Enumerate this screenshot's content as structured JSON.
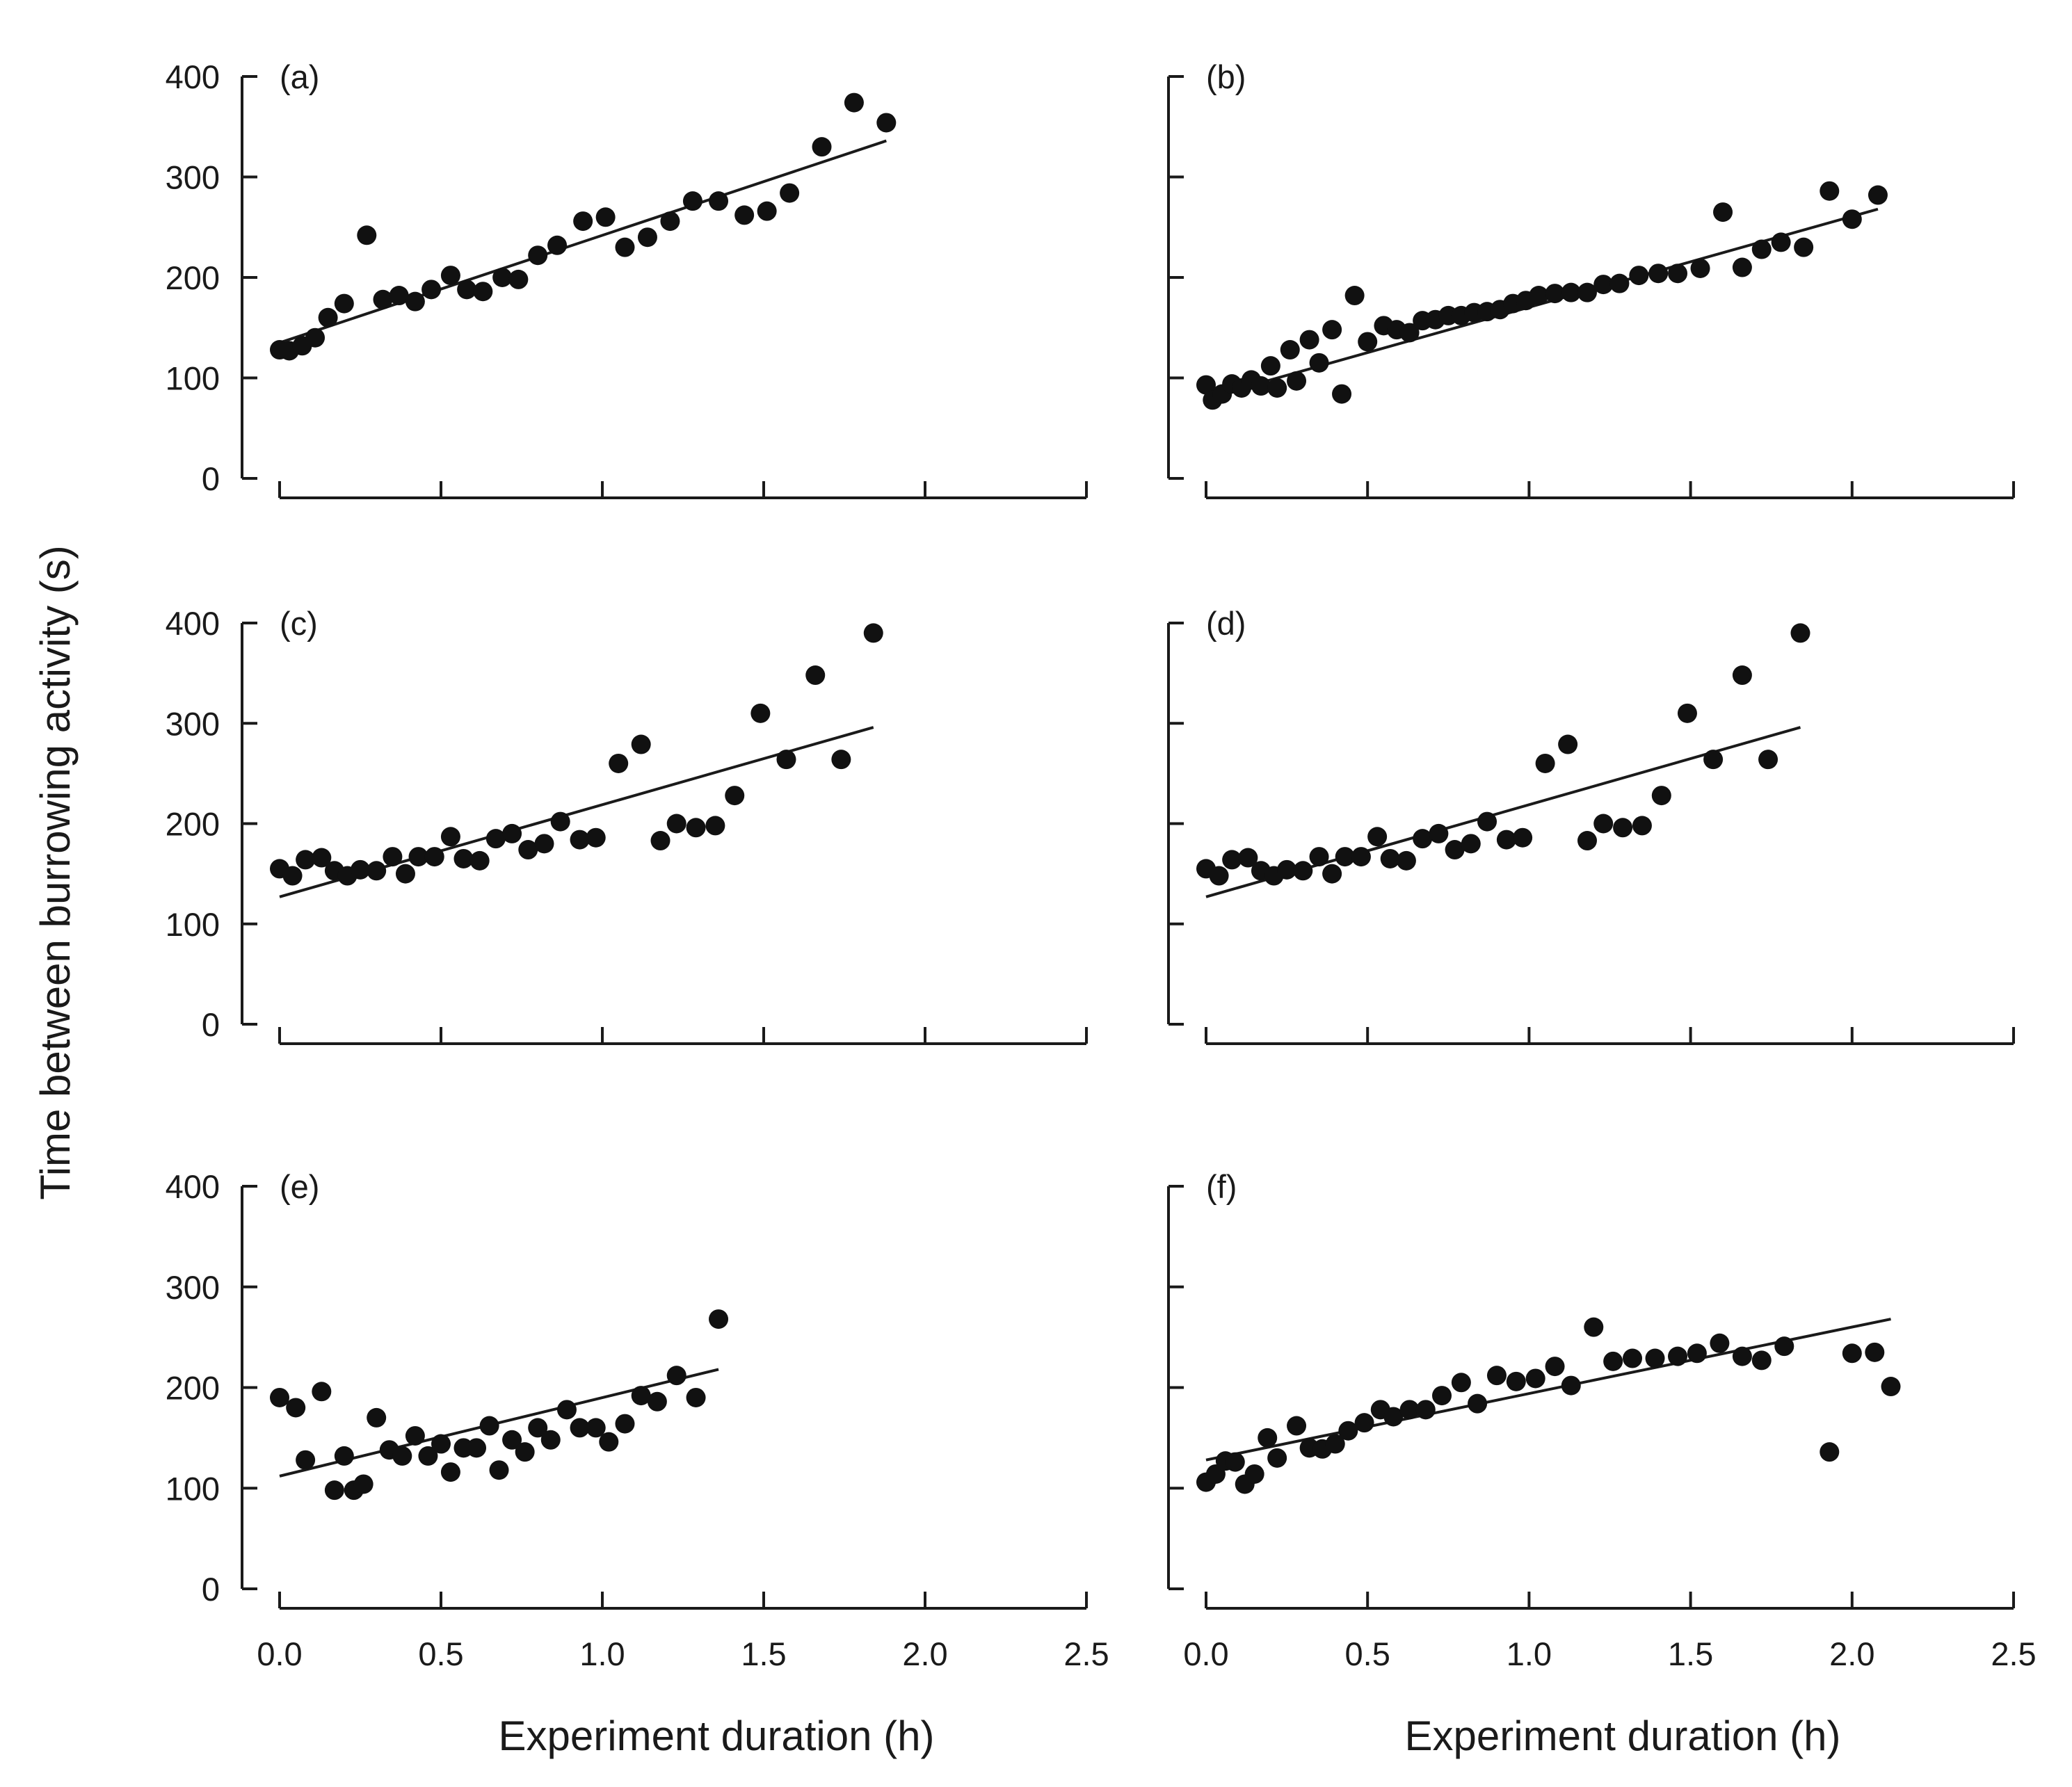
{
  "figure": {
    "ylabel": "Time between burrowing activity (s)",
    "xlabel": "Experiment duration (h)"
  },
  "chart_data": [
    {
      "type": "scatter",
      "panel": "(a)",
      "xlim": [
        0,
        2.5
      ],
      "ylim": [
        0,
        400
      ],
      "xticks": [
        "0.0",
        "0.5",
        "1.0",
        "1.5",
        "2.0",
        "2.5"
      ],
      "yticks": [
        "0",
        "100",
        "200",
        "300",
        "400"
      ],
      "x": [
        0.0,
        0.03,
        0.07,
        0.11,
        0.15,
        0.2,
        0.27,
        0.32,
        0.37,
        0.42,
        0.47,
        0.53,
        0.58,
        0.63,
        0.69,
        0.74,
        0.8,
        0.86,
        0.94,
        1.01,
        1.07,
        1.14,
        1.21,
        1.28,
        1.36,
        1.44,
        1.51,
        1.58,
        1.68,
        1.78,
        1.88
      ],
      "y": [
        128,
        127,
        132,
        140,
        160,
        174,
        242,
        178,
        182,
        176,
        188,
        202,
        188,
        186,
        200,
        198,
        222,
        232,
        256,
        260,
        230,
        240,
        256,
        276,
        276,
        262,
        266,
        284,
        330,
        374,
        354
      ],
      "fit": {
        "x": [
          0.0,
          1.88
        ],
        "y": [
          135,
          336
        ]
      }
    },
    {
      "type": "scatter",
      "panel": "(b)",
      "xlim": [
        0,
        2.5
      ],
      "ylim": [
        0,
        400
      ],
      "xticks": [
        "0.0",
        "0.5",
        "1.0",
        "1.5",
        "2.0",
        "2.5"
      ],
      "yticks": [
        "0",
        "100",
        "200",
        "300",
        "400"
      ],
      "x": [
        0.0,
        0.02,
        0.05,
        0.08,
        0.11,
        0.14,
        0.17,
        0.2,
        0.22,
        0.26,
        0.28,
        0.32,
        0.35,
        0.39,
        0.42,
        0.46,
        0.5,
        0.55,
        0.59,
        0.63,
        0.67,
        0.71,
        0.75,
        0.79,
        0.83,
        0.87,
        0.91,
        0.95,
        0.99,
        1.03,
        1.08,
        1.13,
        1.18,
        1.23,
        1.28,
        1.34,
        1.4,
        1.46,
        1.53,
        1.6,
        1.66,
        1.72,
        1.78,
        1.85,
        1.93,
        2.0,
        2.08
      ],
      "y": [
        93,
        78,
        84,
        94,
        90,
        98,
        92,
        112,
        90,
        128,
        97,
        138,
        115,
        148,
        84,
        182,
        136,
        152,
        148,
        145,
        157,
        158,
        162,
        162,
        165,
        166,
        168,
        174,
        177,
        182,
        184,
        185,
        185,
        193,
        194,
        202,
        204,
        204,
        209,
        265,
        210,
        228,
        235,
        230,
        286,
        258,
        282
      ],
      "fit": {
        "x": [
          0.0,
          2.08
        ],
        "y": [
          80,
          268
        ]
      }
    },
    {
      "type": "scatter",
      "panel": "(c)",
      "xlim": [
        0,
        2.5
      ],
      "ylim": [
        0,
        400
      ],
      "xticks": [
        "0.0",
        "0.5",
        "1.0",
        "1.5",
        "2.0",
        "2.5"
      ],
      "yticks": [
        "0",
        "100",
        "200",
        "300",
        "400"
      ],
      "x": [
        0.0,
        0.04,
        0.08,
        0.13,
        0.17,
        0.21,
        0.25,
        0.3,
        0.35,
        0.39,
        0.43,
        0.48,
        0.53,
        0.57,
        0.62,
        0.67,
        0.72,
        0.77,
        0.82,
        0.87,
        0.93,
        0.98,
        1.05,
        1.12,
        1.18,
        1.23,
        1.29,
        1.35,
        1.41,
        1.49,
        1.57,
        1.66,
        1.74,
        1.84
      ],
      "y": [
        155,
        148,
        164,
        166,
        153,
        148,
        154,
        153,
        167,
        150,
        167,
        167,
        187,
        165,
        163,
        185,
        190,
        174,
        180,
        202,
        184,
        186,
        260,
        279,
        183,
        200,
        196,
        198,
        228,
        310,
        264,
        348,
        264,
        390
      ],
      "fit": {
        "x": [
          0.0,
          1.84
        ],
        "y": [
          127,
          296
        ]
      }
    },
    {
      "type": "scatter",
      "panel": "(d)",
      "xlim": [
        0,
        2.5
      ],
      "ylim": [
        0,
        400
      ],
      "xticks": [
        "0.0",
        "0.5",
        "1.0",
        "1.5",
        "2.0",
        "2.5"
      ],
      "yticks": [
        "0",
        "100",
        "200",
        "300",
        "400"
      ],
      "x": [
        0.0,
        0.04,
        0.08,
        0.13,
        0.17,
        0.21,
        0.25,
        0.3,
        0.35,
        0.39,
        0.43,
        0.48,
        0.53,
        0.57,
        0.62,
        0.67,
        0.72,
        0.77,
        0.82,
        0.87,
        0.93,
        0.98,
        1.05,
        1.12,
        1.18,
        1.23,
        1.29,
        1.35,
        1.41,
        1.49,
        1.57,
        1.66,
        1.74,
        1.84
      ],
      "y": [
        155,
        148,
        164,
        166,
        153,
        148,
        154,
        153,
        167,
        150,
        167,
        167,
        187,
        165,
        163,
        185,
        190,
        174,
        180,
        202,
        184,
        186,
        260,
        279,
        183,
        200,
        196,
        198,
        228,
        310,
        264,
        348,
        264,
        390
      ],
      "fit": {
        "x": [
          0.0,
          1.84
        ],
        "y": [
          127,
          296
        ]
      }
    },
    {
      "type": "scatter",
      "panel": "(e)",
      "xlim": [
        0,
        2.5
      ],
      "ylim": [
        0,
        400
      ],
      "xticks": [
        "0.0",
        "0.5",
        "1.0",
        "1.5",
        "2.0",
        "2.5"
      ],
      "yticks": [
        "0",
        "100",
        "200",
        "300",
        "400"
      ],
      "x": [
        0.0,
        0.05,
        0.08,
        0.13,
        0.17,
        0.2,
        0.23,
        0.26,
        0.3,
        0.34,
        0.38,
        0.42,
        0.46,
        0.5,
        0.53,
        0.57,
        0.61,
        0.65,
        0.68,
        0.72,
        0.76,
        0.8,
        0.84,
        0.89,
        0.93,
        0.98,
        1.02,
        1.07,
        1.12,
        1.17,
        1.23,
        1.29,
        1.36
      ],
      "y": [
        190,
        180,
        128,
        196,
        98,
        132,
        98,
        104,
        170,
        138,
        132,
        152,
        132,
        144,
        116,
        140,
        140,
        162,
        118,
        148,
        136,
        160,
        148,
        178,
        160,
        160,
        146,
        164,
        192,
        186,
        212,
        190,
        268
      ],
      "fit": {
        "x": [
          0.0,
          1.36
        ],
        "y": [
          112,
          218
        ]
      }
    },
    {
      "type": "scatter",
      "panel": "(f)",
      "xlim": [
        0,
        2.5
      ],
      "ylim": [
        0,
        400
      ],
      "xticks": [
        "0.0",
        "0.5",
        "1.0",
        "1.5",
        "2.0",
        "2.5"
      ],
      "yticks": [
        "0",
        "100",
        "200",
        "300",
        "400"
      ],
      "x": [
        0.0,
        0.03,
        0.06,
        0.09,
        0.12,
        0.15,
        0.19,
        0.22,
        0.28,
        0.32,
        0.36,
        0.4,
        0.44,
        0.49,
        0.54,
        0.58,
        0.63,
        0.68,
        0.73,
        0.79,
        0.84,
        0.9,
        0.96,
        1.02,
        1.08,
        1.13,
        1.2,
        1.26,
        1.32,
        1.39,
        1.46,
        1.52,
        1.59,
        1.66,
        1.72,
        1.79,
        1.93,
        2.0,
        2.07,
        2.12
      ],
      "y": [
        106,
        114,
        127,
        126,
        104,
        114,
        150,
        130,
        162,
        140,
        139,
        144,
        157,
        165,
        178,
        171,
        178,
        178,
        192,
        205,
        184,
        212,
        206,
        209,
        221,
        202,
        260,
        226,
        229,
        229,
        231,
        234,
        244,
        231,
        227,
        241,
        136,
        234,
        235,
        201
      ],
      "fit": {
        "x": [
          0.0,
          2.12
        ],
        "y": [
          128,
          268
        ]
      }
    }
  ]
}
